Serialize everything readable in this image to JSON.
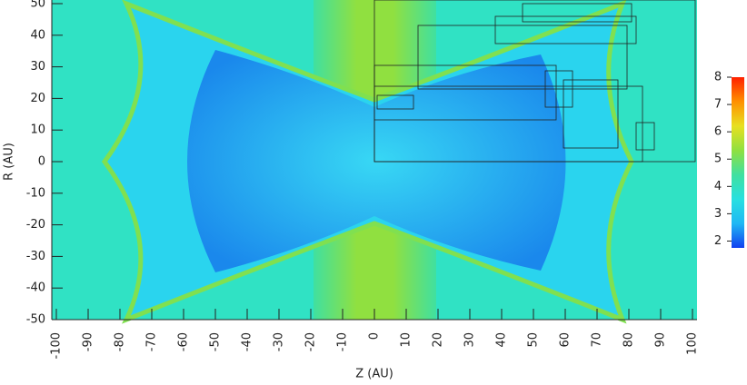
{
  "chart_data": {
    "type": "heatmap",
    "xlabel": "Z (AU)",
    "ylabel": "R (AU)",
    "xlim": [
      -100,
      100
    ],
    "xticks": [
      -100,
      -90,
      -80,
      -70,
      -60,
      -50,
      -40,
      -30,
      -20,
      -10,
      0,
      10,
      20,
      30,
      40,
      50,
      60,
      70,
      80,
      90,
      100
    ],
    "ylim": [
      -50,
      50
    ],
    "yticks": [
      -50,
      -40,
      -30,
      -20,
      -10,
      0,
      10,
      20,
      30,
      40,
      50
    ],
    "colorbar": {
      "lim": [
        1.75,
        8
      ],
      "ticks": [
        2,
        3,
        4,
        5,
        6,
        7,
        8
      ],
      "colors": [
        "#1040f0",
        "#20b8f4",
        "#28e0e0",
        "#40e0a0",
        "#90e040",
        "#e8e020",
        "#ff9000",
        "#ff2000"
      ]
    }
  }
}
